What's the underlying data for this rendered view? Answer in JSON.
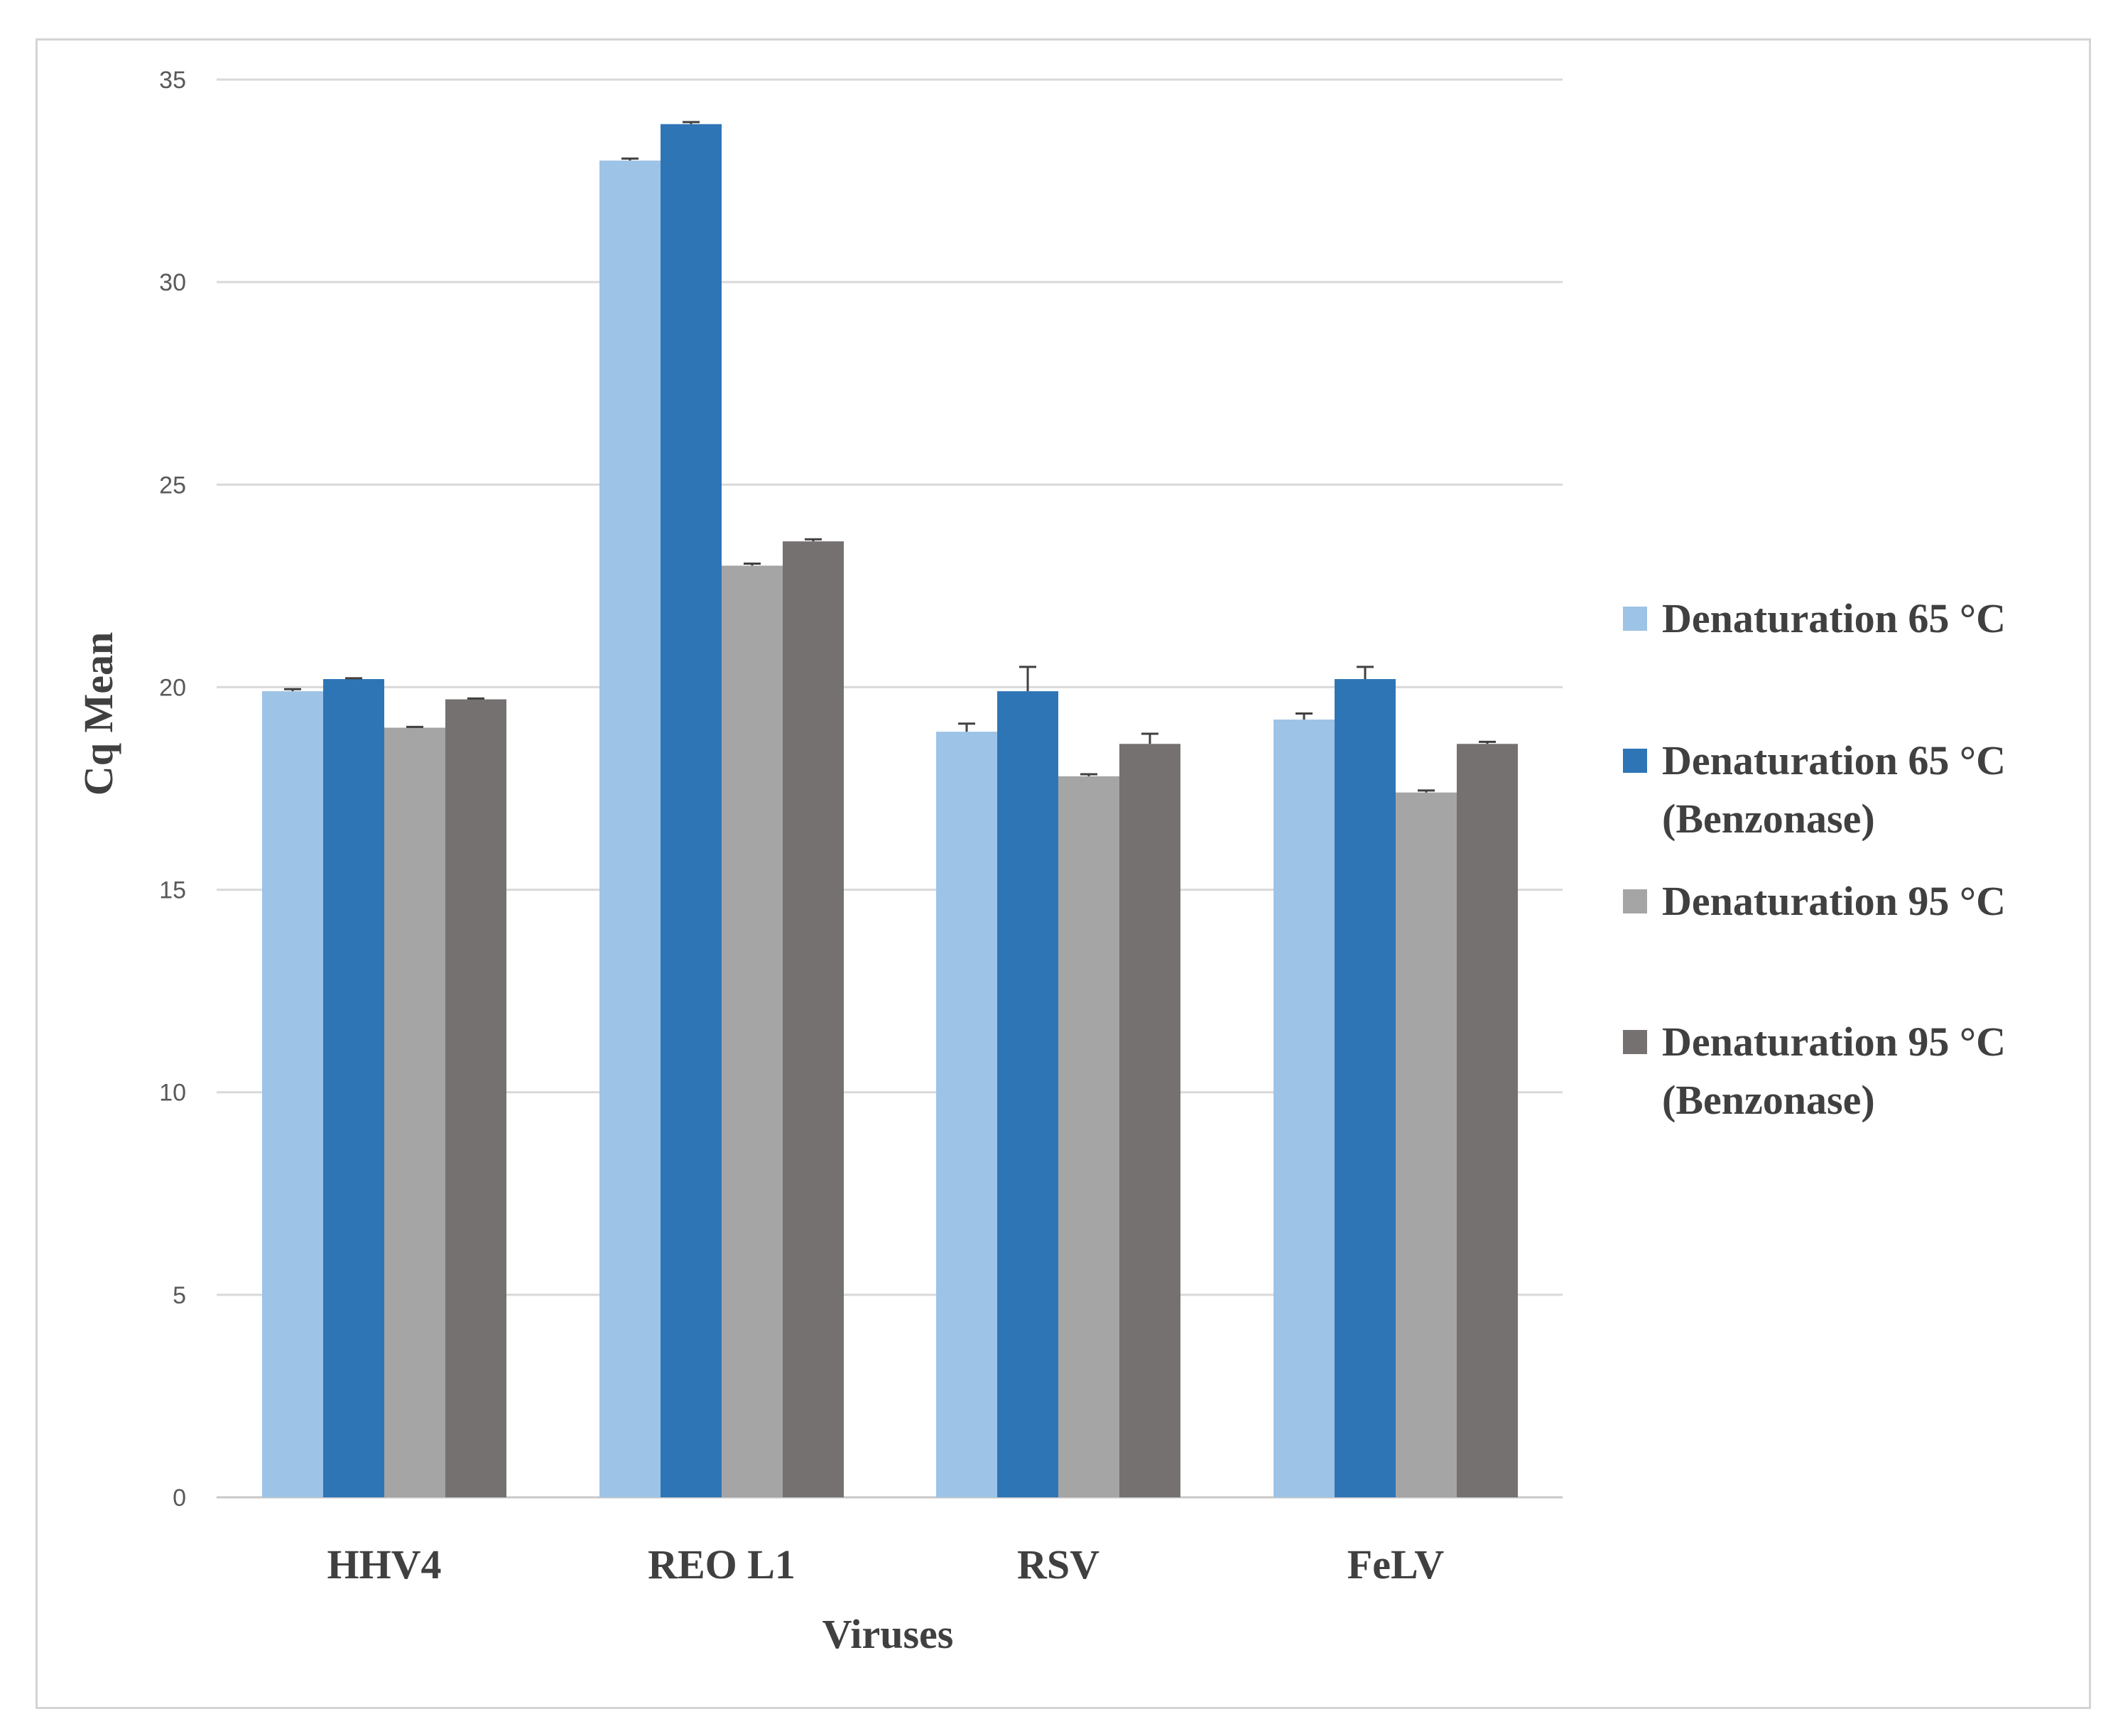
{
  "chart_data": {
    "type": "bar",
    "title": "",
    "xlabel": "Viruses",
    "ylabel": "Cq Mean",
    "ylim": [
      0,
      35
    ],
    "yticks": [
      0,
      5,
      10,
      15,
      20,
      25,
      30,
      35
    ],
    "grid": true,
    "legend_position": "right",
    "categories": [
      "HHV4",
      "REO L1",
      "RSV",
      "FeLV"
    ],
    "series": [
      {
        "name": "Denaturation 65 °C",
        "legend_lines": [
          "Denaturation 65 °C"
        ],
        "color": "#9dc3e6",
        "values": [
          19.9,
          33.0,
          18.9,
          19.2
        ],
        "errors": [
          0.05,
          0.05,
          0.2,
          0.15
        ]
      },
      {
        "name": "Denaturation 65 °C (Benzonase)",
        "legend_lines": [
          "Denaturation 65 °C",
          "(Benzonase)"
        ],
        "color": "#2e75b6",
        "values": [
          20.2,
          33.9,
          19.9,
          20.2
        ],
        "errors": [
          0.02,
          0.05,
          0.6,
          0.3
        ]
      },
      {
        "name": "Denaturation 95 °C",
        "legend_lines": [
          "Denaturation 95 °C"
        ],
        "color": "#a5a5a5",
        "values": [
          19.0,
          23.0,
          17.8,
          17.4
        ],
        "errors": [
          0.02,
          0.05,
          0.05,
          0.05
        ]
      },
      {
        "name": "Denaturation 95 °C (Benzonase)",
        "legend_lines": [
          "Denaturation 95 °C",
          "(Benzonase)"
        ],
        "color": "#767171",
        "values": [
          19.7,
          23.6,
          18.6,
          18.6
        ],
        "errors": [
          0.02,
          0.05,
          0.25,
          0.05
        ]
      }
    ]
  }
}
